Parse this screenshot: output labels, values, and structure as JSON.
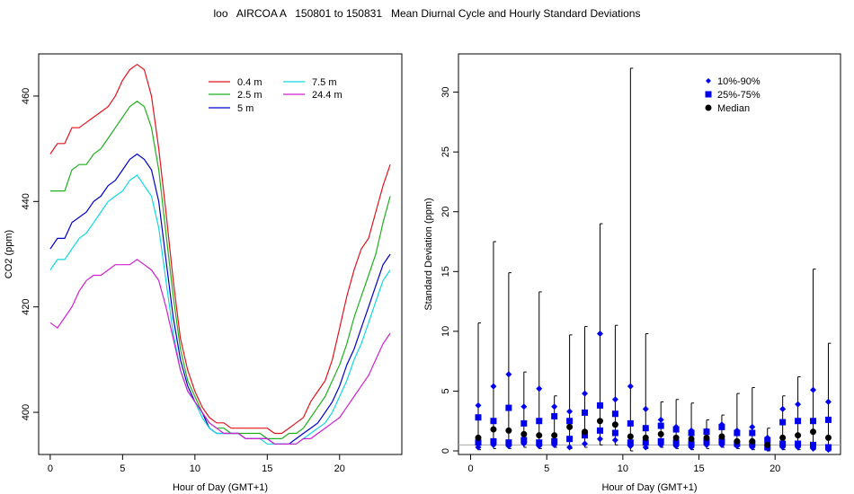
{
  "title": "loo   AIRCOA A   150801 to 150831   Mean Diurnal Cycle and Hourly Standard Deviations",
  "chart_data": [
    {
      "type": "line",
      "xlabel": "Hour of Day (GMT+1)",
      "ylabel": "CO2 (ppm)",
      "xlim": [
        -0.8,
        24.3
      ],
      "ylim": [
        392,
        468
      ],
      "xticks": [
        0,
        5,
        10,
        15,
        20
      ],
      "yticks": [
        400,
        420,
        440,
        460
      ],
      "legend_position": "top-center",
      "x": [
        0,
        0.5,
        1,
        1.5,
        2,
        2.5,
        3,
        3.5,
        4,
        4.5,
        5,
        5.5,
        6,
        6.5,
        7,
        7.5,
        8,
        8.5,
        9,
        9.5,
        10,
        10.5,
        11,
        11.5,
        12,
        12.5,
        13,
        13.5,
        14,
        14.5,
        15,
        15.5,
        16,
        16.5,
        17,
        17.5,
        18,
        18.5,
        19,
        19.5,
        20,
        20.5,
        21,
        21.5,
        22,
        22.5,
        23,
        23.5
      ],
      "series": [
        {
          "name": "0.4 m",
          "color": "#e0141e",
          "values": [
            449,
            451,
            451,
            454,
            454,
            455,
            456,
            457,
            458,
            460,
            463,
            465,
            466,
            465,
            460,
            450,
            438,
            425,
            414,
            408,
            404,
            401,
            399,
            398,
            398,
            397,
            397,
            397,
            397,
            397,
            397,
            396,
            396,
            397,
            398,
            399,
            402,
            404,
            406,
            410,
            416,
            422,
            427,
            431,
            433,
            438,
            443,
            447
          ]
        },
        {
          "name": "2.5 m",
          "color": "#1fb01f",
          "values": [
            442,
            442,
            442,
            446,
            447,
            447,
            449,
            450,
            452,
            454,
            456,
            458,
            459,
            458,
            454,
            446,
            434,
            422,
            412,
            406,
            403,
            400,
            398,
            397,
            397,
            396,
            396,
            396,
            396,
            396,
            395,
            395,
            395,
            396,
            396,
            397,
            399,
            401,
            403,
            406,
            409,
            413,
            418,
            422,
            426,
            430,
            436,
            441
          ]
        },
        {
          "name": "5 m",
          "color": "#0000c8",
          "values": [
            431,
            433,
            433,
            436,
            437,
            438,
            440,
            441,
            443,
            444,
            446,
            448,
            449,
            448,
            446,
            440,
            429,
            418,
            410,
            405,
            402,
            400,
            397,
            396,
            396,
            396,
            396,
            395,
            395,
            395,
            395,
            394,
            394,
            394,
            395,
            396,
            397,
            398,
            400,
            402,
            405,
            409,
            412,
            416,
            420,
            424,
            428,
            430
          ]
        },
        {
          "name": "7.5 m",
          "color": "#10d8e0",
          "values": [
            427,
            429,
            429,
            431,
            433,
            434,
            436,
            438,
            440,
            441,
            442,
            444,
            445,
            443,
            441,
            435,
            425,
            415,
            408,
            404,
            402,
            399,
            397,
            396,
            396,
            396,
            396,
            395,
            395,
            395,
            394,
            394,
            394,
            394,
            394,
            395,
            396,
            397,
            398,
            400,
            403,
            406,
            410,
            413,
            417,
            421,
            425,
            427
          ]
        },
        {
          "name": "24.4 m",
          "color": "#d020d0",
          "values": [
            417,
            416,
            418,
            420,
            423,
            425,
            426,
            426,
            427,
            428,
            428,
            428,
            429,
            428,
            427,
            425,
            420,
            414,
            408,
            404,
            402,
            400,
            398,
            397,
            396,
            396,
            396,
            395,
            395,
            395,
            395,
            394,
            394,
            394,
            394,
            395,
            395,
            396,
            397,
            398,
            399,
            401,
            403,
            405,
            407,
            410,
            413,
            415
          ]
        }
      ]
    },
    {
      "type": "scatter",
      "xlabel": "Hour of Day (GMT+1)",
      "ylabel": "Standard Deviation (ppm)",
      "xlim": [
        -0.8,
        24.3
      ],
      "ylim": [
        -0.3,
        33.2
      ],
      "xticks": [
        0,
        5,
        10,
        15,
        20
      ],
      "yticks": [
        0,
        5,
        10,
        15,
        20,
        25,
        30
      ],
      "reference_line": 0.5,
      "legend_position": "top-right",
      "legend": [
        "10%-90%",
        "25%-75%",
        "Median"
      ],
      "x": [
        0.5,
        1.5,
        2.5,
        3.5,
        4.5,
        5.5,
        6.5,
        7.5,
        8.5,
        9.5,
        10.5,
        11.5,
        12.5,
        13.5,
        14.5,
        15.5,
        16.5,
        17.5,
        18.5,
        19.5,
        20.5,
        21.5,
        22.5,
        23.5
      ],
      "max": [
        10.7,
        17.5,
        14.9,
        6.6,
        13.3,
        4.6,
        9.7,
        10.4,
        19,
        10.5,
        32,
        9.8,
        4.1,
        4.3,
        4,
        2.6,
        3,
        4.8,
        5.3,
        1.9,
        4.6,
        6.2,
        15.2,
        9
      ],
      "p90": [
        3.8,
        5.4,
        6.4,
        3.7,
        5.2,
        3.7,
        3.3,
        4.8,
        9.8,
        4.3,
        5.4,
        3.5,
        2.6,
        2,
        1.7,
        1.7,
        2.2,
        1.7,
        2,
        1.1,
        3.5,
        3.9,
        5.1,
        4.1
      ],
      "p75": [
        2.8,
        2.5,
        3.6,
        2.3,
        2.5,
        2.9,
        2.5,
        3.2,
        3.8,
        3.1,
        2.3,
        1.9,
        2.1,
        1.8,
        1.5,
        1.6,
        2,
        1.5,
        1.5,
        0.9,
        2.4,
        2.5,
        2.5,
        2.6
      ],
      "median": [
        1.1,
        1.8,
        1.7,
        1.4,
        1.3,
        1.3,
        2,
        1.6,
        2.5,
        2.2,
        1.2,
        1.1,
        1.4,
        1.1,
        1,
        1.1,
        1.2,
        0.8,
        0.8,
        0.5,
        1.1,
        1.3,
        1.6,
        1.1
      ],
      "p25": [
        0.7,
        0.8,
        0.7,
        0.9,
        0.7,
        0.8,
        1,
        1.3,
        1.7,
        1.5,
        0.7,
        0.7,
        0.8,
        0.7,
        0.6,
        0.8,
        0.8,
        0.6,
        0.6,
        0.3,
        0.6,
        0.6,
        0.5,
        0.3
      ],
      "p10": [
        0.3,
        0.5,
        0.4,
        0.6,
        0.4,
        0.5,
        0.3,
        0.6,
        1,
        0.9,
        0.4,
        0.3,
        0.5,
        0.4,
        0.3,
        0.5,
        0.5,
        0.4,
        0.3,
        0.2,
        0.3,
        0.3,
        0.2,
        0.1
      ],
      "min": [
        0.1,
        0.2,
        0.2,
        0.3,
        0.2,
        0.3,
        0.2,
        0.3,
        0.5,
        0.5,
        0,
        0.2,
        0.3,
        0.2,
        0.1,
        0.2,
        0.3,
        0.2,
        0.1,
        0,
        0.1,
        0.1,
        0.1,
        0
      ]
    }
  ]
}
